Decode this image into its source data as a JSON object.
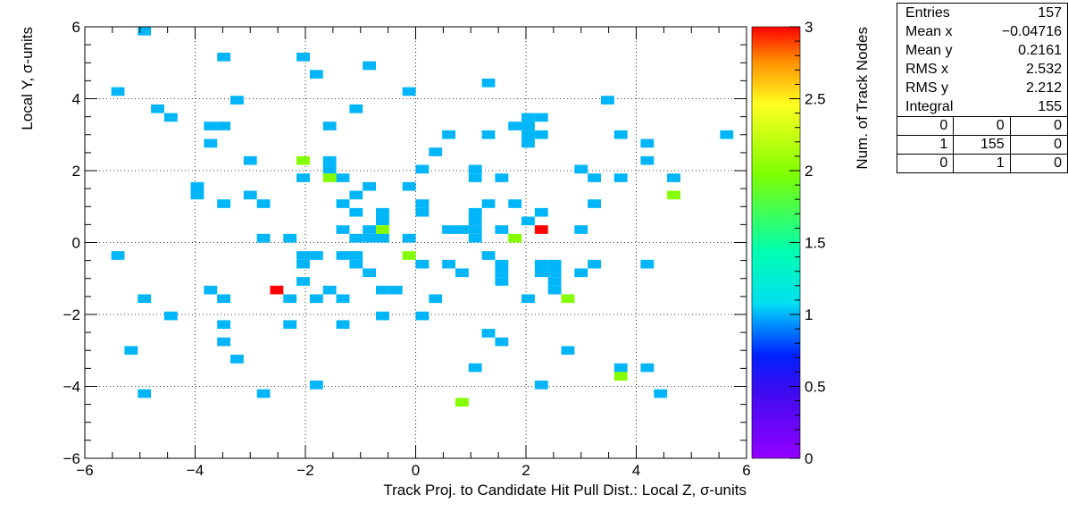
{
  "chart_data": {
    "type": "heatmap",
    "xlabel": "Track Proj. to Candidate Hit Pull Dist.: Local Z, σ-units",
    "ylabel": "Local Y, σ-units",
    "zlabel": "Num. of Track Nodes",
    "xlim": [
      -6,
      6
    ],
    "ylim": [
      -6,
      6
    ],
    "zlim": [
      0,
      3
    ],
    "bin_width": 0.24,
    "bin_height": 0.24,
    "grid": true,
    "colormap": "rainbow (purple → blue → cyan → green → yellow → red)",
    "x_ticks": [
      "−6",
      "−4",
      "−2",
      "0",
      "2",
      "4",
      "6"
    ],
    "y_ticks": [
      "−6",
      "−4",
      "−2",
      "0",
      "2",
      "4",
      "6"
    ],
    "z_ticks": [
      "0",
      "0.5",
      "1",
      "1.5",
      "2",
      "2.5",
      "3"
    ],
    "cells": [
      [
        -4.92,
        5.88,
        1
      ],
      [
        -3.48,
        5.16,
        1
      ],
      [
        -2.04,
        5.16,
        1
      ],
      [
        -1.8,
        4.68,
        1
      ],
      [
        -0.84,
        4.92,
        1
      ],
      [
        -0.12,
        4.2,
        1
      ],
      [
        1.32,
        4.44,
        1
      ],
      [
        -5.4,
        4.2,
        1
      ],
      [
        -3.24,
        3.96,
        1
      ],
      [
        -4.68,
        3.72,
        1
      ],
      [
        -1.08,
        3.72,
        1
      ],
      [
        3.48,
        3.96,
        1
      ],
      [
        -4.44,
        3.48,
        1
      ],
      [
        2.28,
        3.48,
        1
      ],
      [
        2.04,
        3.24,
        1
      ],
      [
        2.04,
        3.0,
        1
      ],
      [
        2.28,
        3.0,
        1
      ],
      [
        -3.72,
        3.24,
        1
      ],
      [
        -3.48,
        3.24,
        1
      ],
      [
        -1.56,
        3.24,
        1
      ],
      [
        1.8,
        3.24,
        1
      ],
      [
        2.04,
        3.48,
        1
      ],
      [
        0.6,
        3.0,
        1
      ],
      [
        1.32,
        3.0,
        1
      ],
      [
        3.72,
        3.0,
        1
      ],
      [
        5.64,
        3.0,
        1
      ],
      [
        -3.72,
        2.76,
        1
      ],
      [
        2.04,
        2.76,
        1
      ],
      [
        4.2,
        2.76,
        1
      ],
      [
        0.36,
        2.52,
        1
      ],
      [
        -3.0,
        2.28,
        1
      ],
      [
        -1.56,
        2.28,
        1
      ],
      [
        -2.04,
        2.28,
        2
      ],
      [
        4.2,
        2.28,
        1
      ],
      [
        -1.56,
        2.04,
        1
      ],
      [
        0.12,
        2.04,
        1
      ],
      [
        1.08,
        2.04,
        1
      ],
      [
        3.0,
        2.04,
        1
      ],
      [
        -2.04,
        1.8,
        1
      ],
      [
        -1.32,
        1.8,
        1
      ],
      [
        -1.56,
        1.8,
        2
      ],
      [
        1.08,
        1.8,
        1
      ],
      [
        1.56,
        1.8,
        1
      ],
      [
        3.24,
        1.8,
        1
      ],
      [
        3.72,
        1.8,
        1
      ],
      [
        4.68,
        1.8,
        1
      ],
      [
        -3.96,
        1.56,
        1
      ],
      [
        -0.84,
        1.56,
        1
      ],
      [
        -0.12,
        1.56,
        1
      ],
      [
        -3.96,
        1.32,
        1
      ],
      [
        -3.0,
        1.32,
        1
      ],
      [
        -1.08,
        1.32,
        1
      ],
      [
        4.68,
        1.32,
        2
      ],
      [
        -3.48,
        1.08,
        1
      ],
      [
        -2.76,
        1.08,
        1
      ],
      [
        -1.32,
        1.08,
        1
      ],
      [
        0.12,
        1.08,
        1
      ],
      [
        1.32,
        1.08,
        1
      ],
      [
        1.8,
        1.08,
        1
      ],
      [
        3.24,
        1.08,
        1
      ],
      [
        -1.08,
        0.84,
        1
      ],
      [
        -0.6,
        0.84,
        1
      ],
      [
        0.12,
        0.84,
        1
      ],
      [
        1.08,
        0.84,
        1
      ],
      [
        2.28,
        0.84,
        1
      ],
      [
        -0.6,
        0.6,
        1
      ],
      [
        1.08,
        0.6,
        1
      ],
      [
        2.04,
        0.6,
        1
      ],
      [
        -1.32,
        0.36,
        1
      ],
      [
        -0.84,
        0.36,
        1
      ],
      [
        -0.6,
        0.36,
        2
      ],
      [
        0.6,
        0.36,
        1
      ],
      [
        0.84,
        0.36,
        1
      ],
      [
        1.08,
        0.36,
        1
      ],
      [
        1.56,
        0.36,
        1
      ],
      [
        2.28,
        0.36,
        3
      ],
      [
        3.0,
        0.36,
        1
      ],
      [
        -2.76,
        0.12,
        1
      ],
      [
        -2.28,
        0.12,
        1
      ],
      [
        -1.08,
        0.12,
        1
      ],
      [
        -0.84,
        0.12,
        1
      ],
      [
        -0.6,
        0.12,
        1
      ],
      [
        -0.12,
        0.12,
        1
      ],
      [
        1.08,
        0.12,
        1
      ],
      [
        1.8,
        0.12,
        2
      ],
      [
        -5.4,
        -0.36,
        1
      ],
      [
        -2.04,
        -0.36,
        1
      ],
      [
        -1.8,
        -0.36,
        1
      ],
      [
        -1.32,
        -0.36,
        1
      ],
      [
        -1.08,
        -0.36,
        1
      ],
      [
        -0.12,
        -0.36,
        2
      ],
      [
        1.32,
        -0.36,
        1
      ],
      [
        -2.04,
        -0.6,
        1
      ],
      [
        -1.08,
        -0.6,
        1
      ],
      [
        0.12,
        -0.6,
        1
      ],
      [
        0.6,
        -0.6,
        1
      ],
      [
        1.56,
        -0.6,
        1
      ],
      [
        2.28,
        -0.6,
        1
      ],
      [
        2.52,
        -0.6,
        1
      ],
      [
        3.24,
        -0.6,
        1
      ],
      [
        4.2,
        -0.6,
        1
      ],
      [
        -0.84,
        -0.84,
        1
      ],
      [
        0.84,
        -0.84,
        1
      ],
      [
        1.56,
        -0.84,
        1
      ],
      [
        2.28,
        -0.84,
        1
      ],
      [
        2.52,
        -0.84,
        1
      ],
      [
        3.0,
        -0.84,
        1
      ],
      [
        -2.04,
        -1.08,
        1
      ],
      [
        1.56,
        -1.08,
        1
      ],
      [
        2.52,
        -1.08,
        1
      ],
      [
        -3.72,
        -1.32,
        1
      ],
      [
        -2.52,
        -1.32,
        3
      ],
      [
        -1.56,
        -1.32,
        1
      ],
      [
        -0.6,
        -1.32,
        1
      ],
      [
        -0.36,
        -1.32,
        1
      ],
      [
        2.52,
        -1.32,
        1
      ],
      [
        -4.92,
        -1.56,
        1
      ],
      [
        -3.48,
        -1.56,
        1
      ],
      [
        -2.28,
        -1.56,
        1
      ],
      [
        -1.8,
        -1.56,
        1
      ],
      [
        -1.32,
        -1.56,
        1
      ],
      [
        0.36,
        -1.56,
        1
      ],
      [
        2.04,
        -1.56,
        1
      ],
      [
        2.76,
        -1.56,
        2
      ],
      [
        -4.44,
        -2.04,
        1
      ],
      [
        -0.6,
        -2.04,
        1
      ],
      [
        0.12,
        -2.04,
        1
      ],
      [
        -3.48,
        -2.28,
        1
      ],
      [
        -2.28,
        -2.28,
        1
      ],
      [
        -1.32,
        -2.28,
        1
      ],
      [
        1.32,
        -2.52,
        1
      ],
      [
        -3.48,
        -2.76,
        1
      ],
      [
        1.56,
        -2.76,
        1
      ],
      [
        -5.16,
        -3.0,
        1
      ],
      [
        2.76,
        -3.0,
        1
      ],
      [
        -3.24,
        -3.24,
        1
      ],
      [
        1.08,
        -3.48,
        1
      ],
      [
        3.72,
        -3.48,
        1
      ],
      [
        4.2,
        -3.48,
        1
      ],
      [
        3.72,
        -3.72,
        2
      ],
      [
        -1.8,
        -3.96,
        1
      ],
      [
        2.28,
        -3.96,
        1
      ],
      [
        -4.92,
        -4.2,
        1
      ],
      [
        -2.76,
        -4.2,
        1
      ],
      [
        4.44,
        -4.2,
        1
      ],
      [
        0.84,
        -4.44,
        2
      ]
    ],
    "stats": {
      "rows": [
        {
          "label": "Entries",
          "value": "157"
        },
        {
          "label": "Mean x",
          "value": "−0.04716"
        },
        {
          "label": "Mean y",
          "value": "0.2161"
        },
        {
          "label": "RMS x",
          "value": "2.532"
        },
        {
          "label": "RMS y",
          "value": "2.212"
        },
        {
          "label": "Integral",
          "value": "155"
        }
      ],
      "grid": [
        [
          "0",
          "0",
          "0"
        ],
        [
          "1",
          "155",
          "0"
        ],
        [
          "0",
          "1",
          "0"
        ]
      ]
    }
  }
}
